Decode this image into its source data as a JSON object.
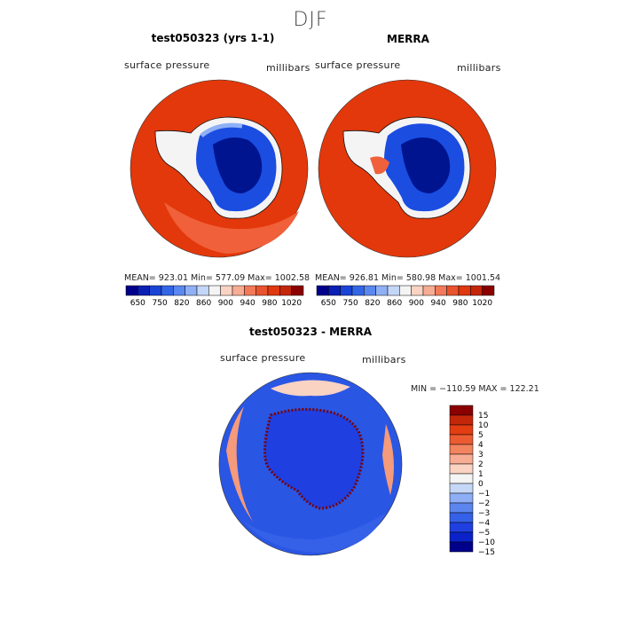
{
  "figure": {
    "title": "DJF"
  },
  "panels": [
    {
      "title": "test050323 (yrs 1-1)",
      "variable": "surface pressure",
      "units": "millibars",
      "stats": {
        "mean": "923.01",
        "min": "577.09",
        "max": "1002.58",
        "text": "MEAN= 923.01   Min= 577.09   Max= 1002.58"
      }
    },
    {
      "title": "MERRA",
      "variable": "surface pressure",
      "units": "millibars",
      "stats": {
        "mean": "926.81",
        "min": "580.98",
        "max": "1001.54",
        "text": "MEAN= 926.81   Min= 580.98   Max= 1001.54"
      }
    },
    {
      "title": "test050323 - MERRA",
      "variable": "surface pressure",
      "units": "millibars",
      "stats": {
        "min": "−110.59",
        "max": "122.21",
        "text": "MIN = −110.59 MAX = 122.21"
      }
    }
  ],
  "colorbar_abs": {
    "colors": [
      "#00008b",
      "#0a20b4",
      "#1b44d6",
      "#3366e6",
      "#5b88f0",
      "#8fb0f5",
      "#c4d6f7",
      "#f4f4f4",
      "#fbd3c2",
      "#f7ad94",
      "#f27a5a",
      "#e9532e",
      "#e0380f",
      "#c4260a",
      "#8b0000"
    ],
    "tick_labels": [
      "650",
      "750",
      "820",
      "860",
      "900",
      "940",
      "980",
      "1020"
    ]
  },
  "colorbar_diff": {
    "colors": [
      "#00008b",
      "#0a22c7",
      "#1f3fe0",
      "#3560e8",
      "#5b86ef",
      "#8eaef5",
      "#c6d8f7",
      "#f4f4f4",
      "#fbd3c2",
      "#f7ad94",
      "#f28460",
      "#ec5c33",
      "#e33d12",
      "#c4260a",
      "#8b0000"
    ],
    "tick_labels": [
      "15",
      "10",
      "5",
      "4",
      "3",
      "2",
      "1",
      "0",
      "−1",
      "−2",
      "−3",
      "−4",
      "−5",
      "−10",
      "−15"
    ]
  },
  "map_colors": {
    "ocean_high": "#e3380b",
    "ocean_mid": "#f0603a",
    "ice_deep": "#00148f",
    "ice_mid": "#1b4de0",
    "ice_light": "#5c8df0",
    "diff_neg": "#2a56e4",
    "diff_neg_light": "#6c97f2",
    "diff_pos": "#f59a7a",
    "diff_pos_light": "#fbd3c2"
  }
}
